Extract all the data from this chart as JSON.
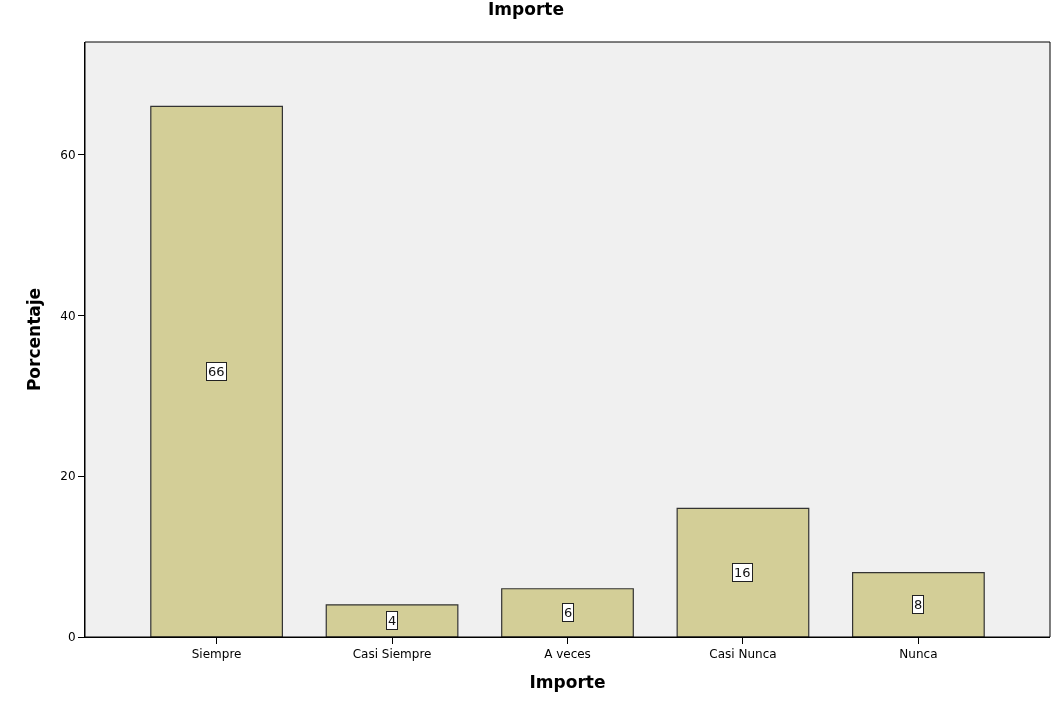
{
  "chart_data": {
    "type": "bar",
    "title": "Importe",
    "xlabel": "Importe",
    "ylabel": "Porcentaje",
    "categories": [
      "Siempre",
      "Casi Siempre",
      "A veces",
      "Casi Nunca",
      "Nunca"
    ],
    "values": [
      66,
      4,
      6,
      16,
      8
    ],
    "color": "#d3ce97",
    "ylim": [
      0,
      74
    ],
    "yticks": [
      0,
      20,
      40,
      60
    ],
    "data_labels": true
  }
}
